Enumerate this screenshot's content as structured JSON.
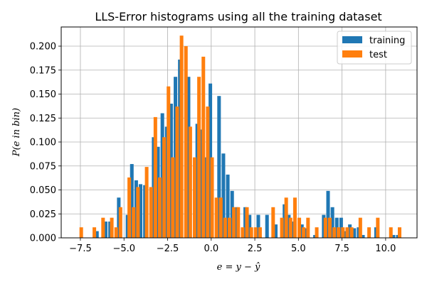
{
  "chart_data": {
    "type": "bar",
    "title": "LLS-Error histograms using all the training dataset",
    "xlabel": "e = y − ŷ",
    "ylabel": "P(e in bin)",
    "xlim": [
      -8.6,
      11.8
    ],
    "ylim": [
      0,
      0.22
    ],
    "xticks": [
      -7.5,
      -5.0,
      -2.5,
      0.0,
      2.5,
      5.0,
      7.5,
      10.0
    ],
    "xtick_labels": [
      "−7.5",
      "−5.0",
      "−2.5",
      "0.0",
      "2.5",
      "5.0",
      "7.5",
      "10.0"
    ],
    "yticks": [
      0,
      0.025,
      0.05,
      0.075,
      0.1,
      0.125,
      0.15,
      0.175,
      0.2
    ],
    "ytick_labels": [
      "0.000",
      "0.025",
      "0.050",
      "0.075",
      "0.100",
      "0.125",
      "0.150",
      "0.175",
      "0.200"
    ],
    "grid": true,
    "legend_position": "top-right",
    "bar_width": 0.205,
    "series": [
      {
        "name": "training",
        "color": "#1f77b4",
        "x": [
          -6.55,
          -6.05,
          -5.8,
          -5.3,
          -4.8,
          -4.55,
          -4.3,
          -4.05,
          -3.8,
          -3.3,
          -3.05,
          -2.8,
          -2.55,
          -2.3,
          -2.05,
          -1.8,
          -1.3,
          -0.8,
          -0.55,
          -0.3,
          -0.05,
          0.45,
          0.7,
          0.95,
          1.2,
          1.45,
          1.95,
          2.2,
          2.7,
          3.2,
          3.7,
          4.2,
          4.45,
          4.7,
          5.2,
          5.45,
          5.95,
          6.45,
          6.7,
          6.95,
          7.2,
          7.45,
          7.7,
          7.95,
          8.2,
          8.45,
          8.7,
          9.45,
          10.45,
          10.7
        ],
        "values": [
          0.007,
          0.017,
          0.017,
          0.042,
          0.024,
          0.077,
          0.06,
          0.056,
          0.055,
          0.105,
          0.095,
          0.13,
          0.116,
          0.14,
          0.168,
          0.186,
          0.168,
          0.119,
          0.113,
          0.084,
          0.161,
          0.148,
          0.088,
          0.066,
          0.049,
          0.032,
          0.032,
          0.024,
          0.024,
          0.024,
          0.014,
          0.035,
          0.024,
          0.017,
          0.014,
          0.01,
          0.003,
          0.024,
          0.049,
          0.032,
          0.021,
          0.021,
          0.007,
          0.014,
          0.01,
          0.011,
          0.003,
          0.011,
          0.003,
          0.003
        ]
      },
      {
        "name": "test",
        "color": "#ff7f0e",
        "x": [
          -7.45,
          -6.7,
          -6.2,
          -5.7,
          -5.45,
          -5.2,
          -4.7,
          -4.45,
          -4.2,
          -3.7,
          -3.45,
          -3.2,
          -2.95,
          -2.7,
          -2.45,
          -2.2,
          -1.95,
          -1.7,
          -1.45,
          -1.2,
          -0.95,
          -0.7,
          -0.45,
          -0.2,
          0.05,
          0.3,
          0.55,
          0.8,
          1.05,
          1.3,
          1.55,
          1.8,
          2.05,
          2.3,
          2.55,
          2.8,
          3.55,
          4.05,
          4.3,
          4.55,
          4.8,
          5.05,
          5.3,
          5.55,
          6.05,
          6.55,
          6.8,
          7.05,
          7.3,
          7.55,
          7.8,
          8.05,
          8.55,
          9.05,
          9.55,
          10.3,
          10.8
        ],
        "values": [
          0.011,
          0.011,
          0.021,
          0.021,
          0.011,
          0.032,
          0.063,
          0.032,
          0.053,
          0.074,
          0.053,
          0.126,
          0.063,
          0.105,
          0.158,
          0.084,
          0.137,
          0.211,
          0.2,
          0.116,
          0.084,
          0.168,
          0.189,
          0.137,
          0.084,
          0.042,
          0.042,
          0.021,
          0.021,
          0.032,
          0.032,
          0.011,
          0.032,
          0.011,
          0.011,
          0.011,
          0.032,
          0.021,
          0.042,
          0.021,
          0.042,
          0.021,
          0.011,
          0.021,
          0.011,
          0.021,
          0.021,
          0.011,
          0.011,
          0.011,
          0.011,
          0.011,
          0.021,
          0.011,
          0.021,
          0.011,
          0.011
        ]
      }
    ]
  }
}
